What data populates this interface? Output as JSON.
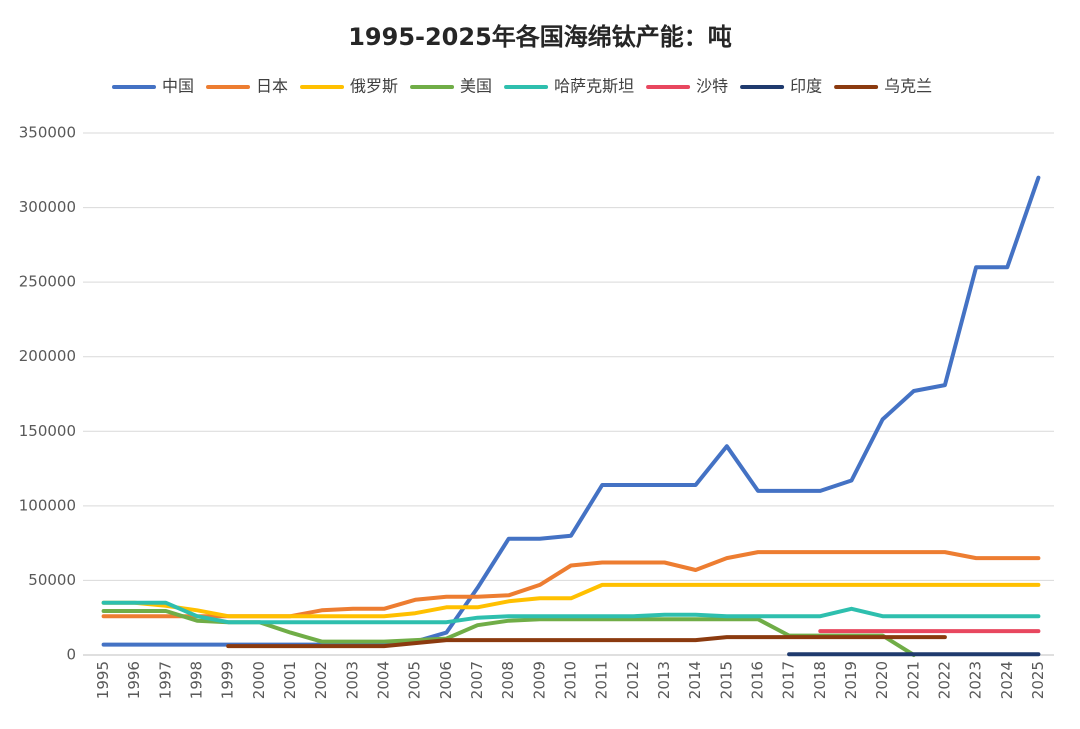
{
  "chart_data": {
    "type": "line",
    "title": "1995-2025年各国海绵钛产能：吨",
    "categories": [
      "1995",
      "1996",
      "1997",
      "1998",
      "1999",
      "2000",
      "2001",
      "2002",
      "2003",
      "2004",
      "2005",
      "2006",
      "2007",
      "2008",
      "2009",
      "2010",
      "2011",
      "2012",
      "2013",
      "2014",
      "2015",
      "2016",
      "2017",
      "2018",
      "2019",
      "2020",
      "2021",
      "2022",
      "2023",
      "2024",
      "2025"
    ],
    "ylim": [
      0,
      350000
    ],
    "yticks": [
      0,
      50000,
      100000,
      150000,
      200000,
      250000,
      300000,
      350000
    ],
    "grid": true,
    "legend": "top",
    "series": [
      {
        "name": "中国",
        "color": "#4472c4",
        "values": [
          7000,
          7000,
          7000,
          7000,
          7000,
          7000,
          7000,
          7000,
          7000,
          7000,
          9000,
          15000,
          45000,
          78000,
          78000,
          80000,
          114000,
          114000,
          114000,
          114000,
          140000,
          110000,
          110000,
          110000,
          117000,
          158000,
          177000,
          181000,
          260000,
          260000,
          320000
        ]
      },
      {
        "name": "日本",
        "color": "#ed7d31",
        "values": [
          26000,
          26000,
          26000,
          26000,
          26000,
          26000,
          26000,
          30000,
          31000,
          31000,
          37000,
          39000,
          39000,
          40000,
          47000,
          60000,
          62000,
          62000,
          62000,
          57000,
          65000,
          69000,
          69000,
          69000,
          69000,
          69000,
          69000,
          69000,
          65000,
          65000,
          65000
        ]
      },
      {
        "name": "俄罗斯",
        "color": "#ffc000",
        "values": [
          35000,
          35000,
          33000,
          30000,
          26000,
          26000,
          26000,
          26000,
          26000,
          26000,
          28000,
          32000,
          32000,
          36000,
          38000,
          38000,
          47000,
          47000,
          47000,
          47000,
          47000,
          47000,
          47000,
          47000,
          47000,
          47000,
          47000,
          47000,
          47000,
          47000,
          47000
        ]
      },
      {
        "name": "美国",
        "color": "#70ad47",
        "values": [
          29500,
          29500,
          29500,
          23000,
          22000,
          22000,
          15000,
          9000,
          9000,
          9000,
          10000,
          11000,
          20000,
          23000,
          24000,
          24000,
          24000,
          24000,
          24000,
          24000,
          24000,
          24000,
          13000,
          13000,
          13000,
          13000,
          0,
          null,
          null,
          null,
          null
        ]
      },
      {
        "name": "哈萨克斯坦",
        "color": "#2ebfae",
        "values": [
          35000,
          35000,
          35000,
          26000,
          22000,
          22000,
          22000,
          22000,
          22000,
          22000,
          22000,
          22000,
          25000,
          26000,
          26000,
          26000,
          26000,
          26000,
          27000,
          27000,
          26000,
          26000,
          26000,
          26000,
          31000,
          26000,
          26000,
          26000,
          26000,
          26000,
          26000
        ]
      },
      {
        "name": "沙特",
        "color": "#e8475f",
        "values": [
          null,
          null,
          null,
          null,
          null,
          null,
          null,
          null,
          null,
          null,
          null,
          null,
          null,
          null,
          null,
          null,
          null,
          null,
          null,
          null,
          null,
          null,
          null,
          16000,
          16000,
          16000,
          16000,
          16000,
          16000,
          16000,
          16000
        ]
      },
      {
        "name": "印度",
        "color": "#1f3a6e",
        "values": [
          null,
          null,
          null,
          null,
          null,
          null,
          null,
          null,
          null,
          null,
          null,
          null,
          null,
          null,
          null,
          null,
          null,
          null,
          null,
          null,
          null,
          null,
          500,
          500,
          500,
          500,
          500,
          500,
          500,
          500,
          500
        ]
      },
      {
        "name": "乌克兰",
        "color": "#8b3a0f",
        "values": [
          null,
          null,
          null,
          null,
          6000,
          6000,
          6000,
          6000,
          6000,
          6000,
          8000,
          10000,
          10000,
          10000,
          10000,
          10000,
          10000,
          10000,
          10000,
          10000,
          12000,
          12000,
          12000,
          12000,
          12000,
          12000,
          12000,
          12000,
          null,
          null,
          null
        ]
      }
    ]
  }
}
